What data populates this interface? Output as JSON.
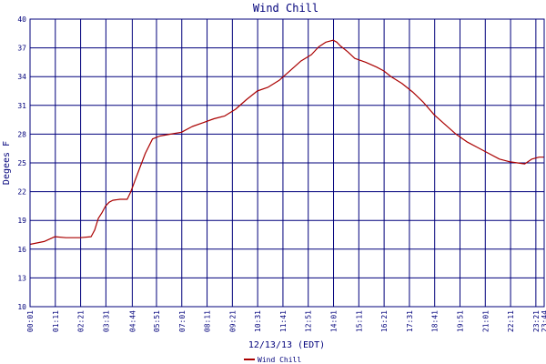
{
  "chart_data": {
    "type": "line",
    "title": "Wind Chill",
    "xlabel": "12/13/13 (EDT)",
    "ylabel": "Degees F",
    "ylim": [
      10,
      40
    ],
    "yticks": [
      "10",
      "13",
      "16",
      "19",
      "22",
      "25",
      "28",
      "31",
      "34",
      "37",
      "40"
    ],
    "xlim": [
      1,
      1424
    ],
    "xticks": [
      {
        "min": 1,
        "label": "00:01"
      },
      {
        "min": 71,
        "label": "01:11"
      },
      {
        "min": 141,
        "label": "02:21"
      },
      {
        "min": 211,
        "label": "03:31"
      },
      {
        "min": 284,
        "label": "04:44"
      },
      {
        "min": 351,
        "label": "05:51"
      },
      {
        "min": 421,
        "label": "07:01"
      },
      {
        "min": 491,
        "label": "08:11"
      },
      {
        "min": 561,
        "label": "09:21"
      },
      {
        "min": 631,
        "label": "10:31"
      },
      {
        "min": 701,
        "label": "11:41"
      },
      {
        "min": 771,
        "label": "12:51"
      },
      {
        "min": 841,
        "label": "14:01"
      },
      {
        "min": 911,
        "label": "15:11"
      },
      {
        "min": 981,
        "label": "16:21"
      },
      {
        "min": 1051,
        "label": "17:31"
      },
      {
        "min": 1121,
        "label": "18:41"
      },
      {
        "min": 1191,
        "label": "19:51"
      },
      {
        "min": 1261,
        "label": "21:01"
      },
      {
        "min": 1331,
        "label": "22:11"
      },
      {
        "min": 1401,
        "label": "23:21"
      },
      {
        "min": 1424,
        "label": "23:44"
      }
    ],
    "grid": true,
    "legend_position": "bottom-left",
    "colors": {
      "line": "#aa0000",
      "grid": "#00007b",
      "text": "#00007b",
      "background": "#ffffff"
    },
    "series": [
      {
        "name": "Wind Chill",
        "x": [
          1,
          40,
          70,
          100,
          140,
          170,
          180,
          190,
          200,
          210,
          220,
          230,
          250,
          270,
          280,
          300,
          320,
          340,
          360,
          390,
          420,
          450,
          480,
          510,
          540,
          570,
          600,
          630,
          660,
          690,
          720,
          750,
          780,
          800,
          820,
          840,
          850,
          860,
          880,
          900,
          930,
          960,
          980,
          1000,
          1030,
          1060,
          1090,
          1120,
          1150,
          1180,
          1210,
          1240,
          1270,
          1300,
          1330,
          1350,
          1370,
          1390,
          1410,
          1424
        ],
        "y": [
          16.5,
          16.8,
          17.3,
          17.2,
          17.2,
          17.3,
          18.0,
          19.2,
          19.8,
          20.5,
          20.9,
          21.1,
          21.2,
          21.2,
          22.0,
          24.0,
          26.0,
          27.5,
          27.8,
          28.0,
          28.2,
          28.8,
          29.2,
          29.6,
          29.9,
          30.6,
          31.6,
          32.5,
          32.9,
          33.6,
          34.6,
          35.6,
          36.3,
          37.1,
          37.6,
          37.8,
          37.6,
          37.2,
          36.6,
          35.9,
          35.5,
          35.0,
          34.6,
          34.0,
          33.3,
          32.4,
          31.3,
          30.0,
          29.0,
          28.0,
          27.2,
          26.6,
          26.0,
          25.4,
          25.1,
          25.0,
          24.9,
          25.4,
          25.6,
          25.6
        ]
      }
    ]
  }
}
